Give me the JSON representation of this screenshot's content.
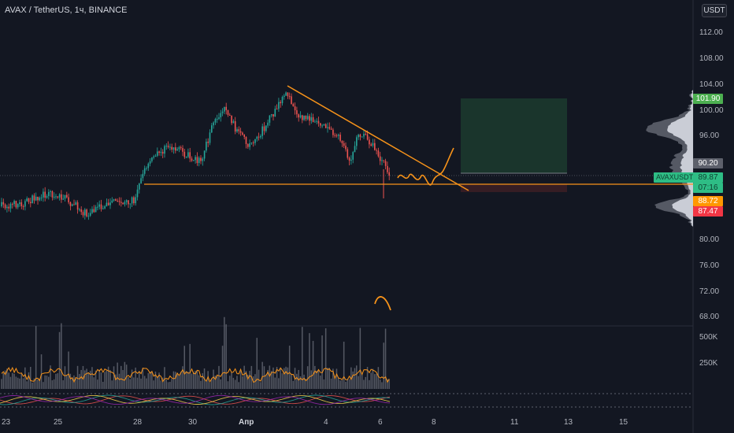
{
  "header": {
    "title": "AVAX / TetherUS, 1ч, BINANCE",
    "currency": "USDT"
  },
  "price_axis": {
    "ticks": [
      "112.00",
      "108.00",
      "104.00",
      "100.00",
      "96.00",
      "80.00",
      "76.00",
      "72.00",
      "68.00"
    ]
  },
  "volume_axis": {
    "ticks": [
      "500K",
      "250K"
    ]
  },
  "date_axis": {
    "ticks": [
      "23",
      "25",
      "28",
      "30",
      "Апр",
      "4",
      "6",
      "8",
      "11",
      "13",
      "15"
    ]
  },
  "badges": {
    "target": "101.90",
    "stop_level": "90.20",
    "last_price": "89.87",
    "countdown": "07:16",
    "entry": "88.72",
    "stop": "87.47",
    "symbol": "AVAXUSDT"
  },
  "colors": {
    "bg": "#131722",
    "up": "#26a69a",
    "down": "#ef5350",
    "drawing": "#f7931a",
    "target": "#4caf50",
    "last": "#2ebd85",
    "entry": "#ff9800",
    "stop": "#f23645"
  }
}
